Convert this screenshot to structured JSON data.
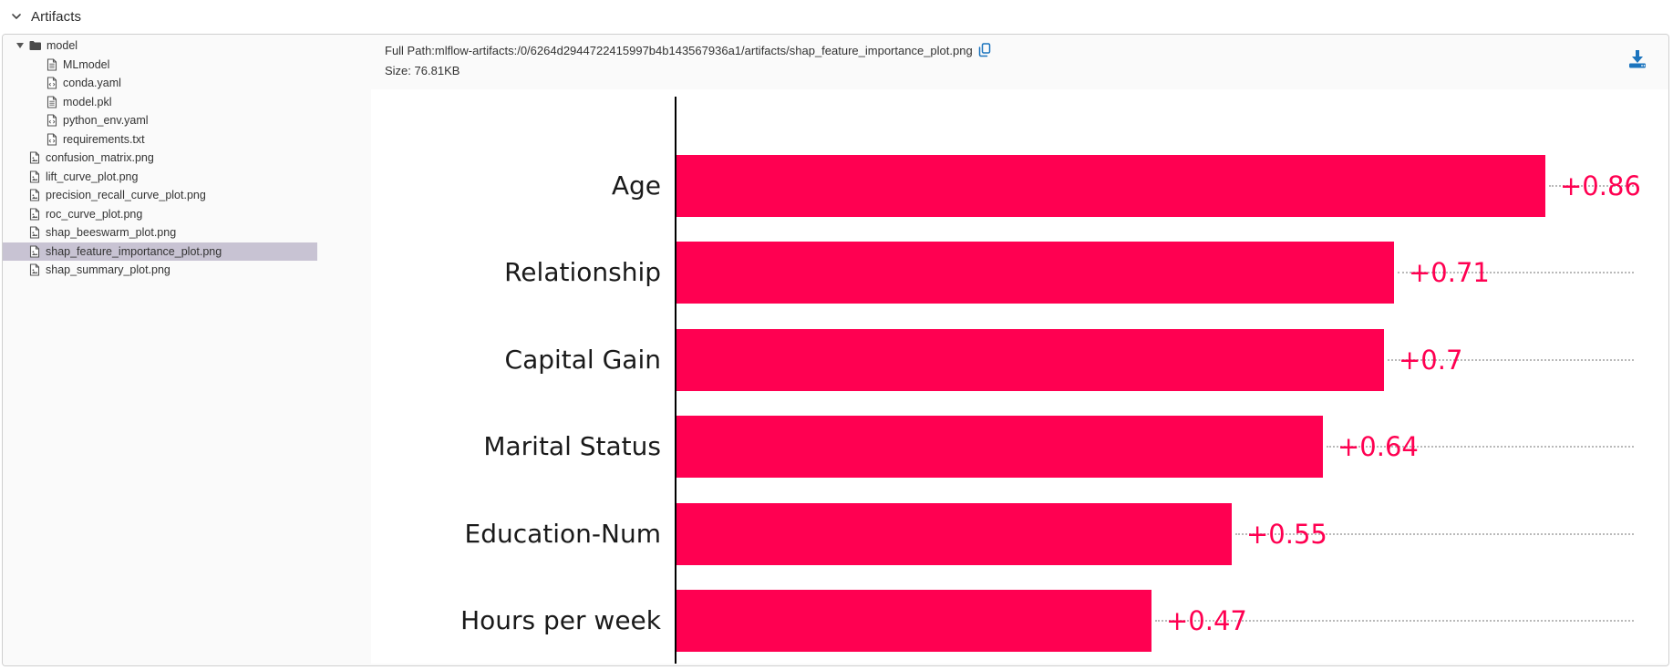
{
  "header": {
    "title": "Artifacts"
  },
  "colors": {
    "accent_blue": "#1b74be",
    "bar_color": "#ff0051",
    "selected_item_bg": "#c8c3d3"
  },
  "file_tree": {
    "items": [
      {
        "label": "model",
        "icon": "folder",
        "level": 0,
        "expanded": true,
        "selected": false
      },
      {
        "label": "MLmodel",
        "icon": "doc",
        "level": 2,
        "selected": false
      },
      {
        "label": "conda.yaml",
        "icon": "code",
        "level": 2,
        "selected": false
      },
      {
        "label": "model.pkl",
        "icon": "doc",
        "level": 2,
        "selected": false
      },
      {
        "label": "python_env.yaml",
        "icon": "code",
        "level": 2,
        "selected": false
      },
      {
        "label": "requirements.txt",
        "icon": "code",
        "level": 2,
        "selected": false
      },
      {
        "label": "confusion_matrix.png",
        "icon": "image",
        "level": 1,
        "selected": false
      },
      {
        "label": "lift_curve_plot.png",
        "icon": "image",
        "level": 1,
        "selected": false
      },
      {
        "label": "precision_recall_curve_plot.png",
        "icon": "image",
        "level": 1,
        "selected": false
      },
      {
        "label": "roc_curve_plot.png",
        "icon": "image",
        "level": 1,
        "selected": false
      },
      {
        "label": "shap_beeswarm_plot.png",
        "icon": "image",
        "level": 1,
        "selected": false
      },
      {
        "label": "shap_feature_importance_plot.png",
        "icon": "image",
        "level": 1,
        "selected": true
      },
      {
        "label": "shap_summary_plot.png",
        "icon": "image",
        "level": 1,
        "selected": false
      }
    ]
  },
  "artifact_view": {
    "full_path_label": "Full Path:",
    "full_path": "mlflow-artifacts:/0/6264d2944722415997b4b143567936a1/artifacts/shap_feature_importance_plot.png",
    "size_label": "Size:",
    "size": "76.81KB"
  },
  "chart_data": {
    "type": "bar",
    "orientation": "horizontal",
    "title": "",
    "xlabel": "",
    "ylabel": "",
    "categories": [
      "Age",
      "Relationship",
      "Capital Gain",
      "Marital Status",
      "Education-Num",
      "Hours per week"
    ],
    "values": [
      0.86,
      0.71,
      0.7,
      0.64,
      0.55,
      0.47
    ],
    "value_labels": [
      "+0.86",
      "+0.71",
      "+0.7",
      "+0.64",
      "+0.55",
      "+0.47"
    ],
    "bar_color": "#ff0051",
    "value_label_color": "#ff0051",
    "xlim": [
      0,
      0.95
    ],
    "grid": "dotted-row-lines",
    "legend": "none"
  }
}
